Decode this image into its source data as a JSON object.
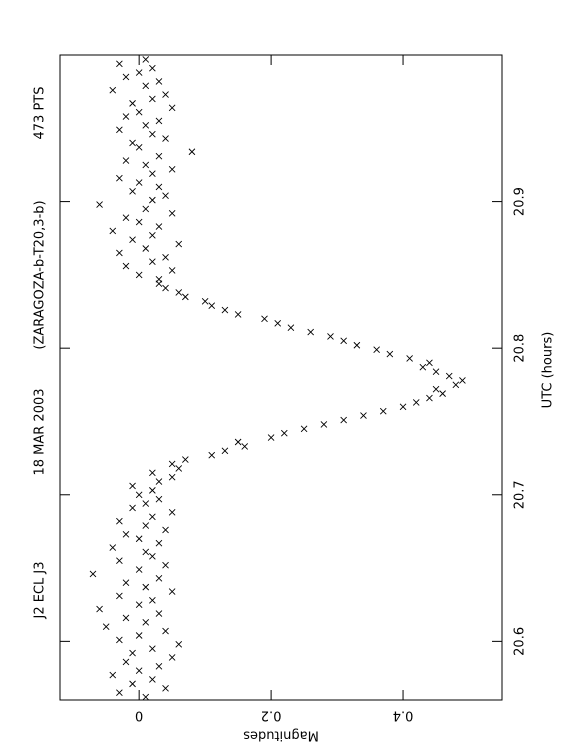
{
  "chart_data": {
    "type": "scatter",
    "title": "J2 ECL J3",
    "subtitle": "18 MAR 2003",
    "annotations": [
      "(ZARAGOZA-b-T20,3-b)",
      "473  PTS"
    ],
    "xlabel": "UTC (hours)",
    "ylabel": "Magnitudes",
    "xlim": [
      20.56,
      21.0
    ],
    "ylim": [
      -0.12,
      0.55
    ],
    "y_inverted": true,
    "xticks": [
      20.6,
      20.7,
      20.8,
      20.9
    ],
    "yticks": [
      0,
      0.2,
      0.4
    ],
    "color": "#000000",
    "x": [
      20.562,
      20.565,
      20.568,
      20.571,
      20.574,
      20.577,
      20.58,
      20.583,
      20.586,
      20.589,
      20.592,
      20.595,
      20.598,
      20.601,
      20.604,
      20.607,
      20.61,
      20.613,
      20.616,
      20.619,
      20.622,
      20.625,
      20.628,
      20.631,
      20.634,
      20.637,
      20.64,
      20.643,
      20.646,
      20.649,
      20.652,
      20.655,
      20.658,
      20.661,
      20.664,
      20.667,
      20.67,
      20.673,
      20.676,
      20.679,
      20.682,
      20.685,
      20.688,
      20.691,
      20.694,
      20.697,
      20.7,
      20.703,
      20.706,
      20.709,
      20.712,
      20.715,
      20.718,
      20.721,
      20.724,
      20.727,
      20.73,
      20.733,
      20.736,
      20.739,
      20.742,
      20.745,
      20.748,
      20.751,
      20.754,
      20.757,
      20.76,
      20.763,
      20.766,
      20.769,
      20.772,
      20.775,
      20.778,
      20.781,
      20.784,
      20.787,
      20.79,
      20.793,
      20.796,
      20.799,
      20.802,
      20.805,
      20.808,
      20.811,
      20.814,
      20.817,
      20.82,
      20.823,
      20.826,
      20.829,
      20.832,
      20.835,
      20.838,
      20.841,
      20.844,
      20.847,
      20.85,
      20.853,
      20.856,
      20.859,
      20.862,
      20.865,
      20.868,
      20.871,
      20.874,
      20.877,
      20.88,
      20.883,
      20.886,
      20.889,
      20.892,
      20.895,
      20.898,
      20.901,
      20.904,
      20.907,
      20.91,
      20.913,
      20.916,
      20.919,
      20.922,
      20.925,
      20.928,
      20.931,
      20.934,
      20.937,
      20.94,
      20.943,
      20.946,
      20.949,
      20.952,
      20.955,
      20.958,
      20.961,
      20.964,
      20.967,
      20.97,
      20.973,
      20.976,
      20.979,
      20.982,
      20.985,
      20.988,
      20.991,
      20.994,
      20.997
    ],
    "values": [
      0.01,
      -0.03,
      0.04,
      -0.01,
      0.02,
      -0.04,
      0.0,
      0.03,
      -0.02,
      0.05,
      -0.01,
      0.02,
      0.06,
      -0.03,
      0.0,
      0.04,
      -0.05,
      0.01,
      -0.02,
      0.03,
      -0.06,
      0.0,
      0.02,
      -0.03,
      0.05,
      0.01,
      -0.02,
      0.03,
      -0.07,
      0.0,
      0.04,
      -0.03,
      0.02,
      0.01,
      -0.04,
      0.03,
      0.0,
      -0.02,
      0.04,
      0.01,
      -0.03,
      0.02,
      0.05,
      -0.01,
      0.01,
      0.03,
      0.0,
      0.02,
      -0.01,
      0.03,
      0.05,
      0.02,
      0.06,
      0.05,
      0.07,
      0.11,
      0.13,
      0.16,
      0.15,
      0.2,
      0.22,
      0.25,
      0.28,
      0.31,
      0.34,
      0.37,
      0.4,
      0.42,
      0.44,
      0.46,
      0.45,
      0.48,
      0.49,
      0.47,
      0.45,
      0.43,
      0.44,
      0.41,
      0.38,
      0.36,
      0.33,
      0.31,
      0.29,
      0.26,
      0.23,
      0.21,
      0.19,
      0.15,
      0.13,
      0.11,
      0.1,
      0.07,
      0.06,
      0.04,
      0.03,
      0.03,
      0.0,
      0.05,
      -0.02,
      0.02,
      0.04,
      -0.03,
      0.01,
      0.06,
      -0.01,
      0.02,
      -0.04,
      0.03,
      0.0,
      -0.02,
      0.05,
      0.01,
      -0.06,
      0.02,
      0.04,
      -0.01,
      0.03,
      0.0,
      -0.03,
      0.02,
      0.05,
      0.01,
      -0.02,
      0.03,
      0.08,
      0.0,
      -0.01,
      0.04,
      0.02,
      -0.03,
      0.01,
      0.03,
      -0.02,
      0.0,
      0.05,
      -0.01,
      0.02,
      0.04,
      -0.04,
      0.01,
      0.03,
      -0.02,
      0.0,
      0.02,
      -0.03,
      0.01
    ]
  }
}
